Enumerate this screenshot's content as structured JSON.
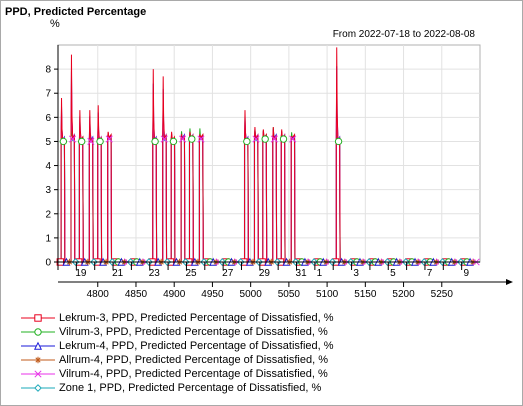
{
  "chart_data": {
    "type": "line",
    "title": "PPD, Predicted Percentage",
    "ylabel": "%",
    "date_range_label": "From 2022-07-18 to 2022-08-08",
    "xlim": [
      4748,
      5300
    ],
    "ylim": [
      0,
      9
    ],
    "yticks": [
      0,
      1,
      2,
      3,
      4,
      5,
      6,
      7,
      8
    ],
    "xticks": [
      4800,
      4850,
      4900,
      4950,
      5000,
      5050,
      5100,
      5150,
      5200,
      5250
    ],
    "day_labels": [
      {
        "day": "19",
        "hour": 4772
      },
      {
        "day": "21",
        "hour": 4820
      },
      {
        "day": "23",
        "hour": 4868
      },
      {
        "day": "25",
        "hour": 4916
      },
      {
        "day": "27",
        "hour": 4964
      },
      {
        "day": "29",
        "hour": 5012
      },
      {
        "day": "31",
        "hour": 5060
      },
      {
        "day": "1",
        "hour": 5084
      },
      {
        "day": "3",
        "hour": 5132
      },
      {
        "day": "5",
        "hour": 5180
      },
      {
        "day": "7",
        "hour": 5228
      },
      {
        "day": "9",
        "hour": 5276
      }
    ],
    "day_boundaries": [
      4748,
      4772,
      4796,
      4820,
      4844,
      4868,
      4892,
      4916,
      4940,
      4964,
      4988,
      5012,
      5036,
      5060,
      5084,
      5108,
      5132,
      5156,
      5180,
      5204,
      5228,
      5252,
      5276
    ],
    "grid": true,
    "occupied_periods": [
      {
        "start": 4752,
        "end": 4757,
        "base": 5.0,
        "peak": 6.8
      },
      {
        "start": 4765,
        "end": 4770,
        "base": 5.1,
        "peak": 8.6
      },
      {
        "start": 4776,
        "end": 4781,
        "base": 5.0,
        "peak": 6.3
      },
      {
        "start": 4789,
        "end": 4794,
        "base": 5.0,
        "peak": 6.3
      },
      {
        "start": 4800,
        "end": 4805,
        "base": 5.0,
        "peak": 6.5
      },
      {
        "start": 4813,
        "end": 4818,
        "base": 5.1,
        "peak": 5.4
      },
      {
        "start": 4872,
        "end": 4877,
        "base": 5.0,
        "peak": 8.0
      },
      {
        "start": 4885,
        "end": 4890,
        "base": 5.1,
        "peak": 7.7
      },
      {
        "start": 4896,
        "end": 4901,
        "base": 5.0,
        "peak": 5.4
      },
      {
        "start": 4909,
        "end": 4914,
        "base": 5.1,
        "peak": 5.3
      },
      {
        "start": 4920,
        "end": 4925,
        "base": 5.1,
        "peak": 5.4
      },
      {
        "start": 4933,
        "end": 4938,
        "base": 5.1,
        "peak": 5.3
      },
      {
        "start": 4992,
        "end": 4997,
        "base": 5.0,
        "peak": 6.3
      },
      {
        "start": 5005,
        "end": 5010,
        "base": 5.1,
        "peak": 5.6
      },
      {
        "start": 5016,
        "end": 5021,
        "base": 5.1,
        "peak": 5.5
      },
      {
        "start": 5029,
        "end": 5034,
        "base": 5.1,
        "peak": 5.6
      },
      {
        "start": 5040,
        "end": 5045,
        "base": 5.1,
        "peak": 5.5
      },
      {
        "start": 5053,
        "end": 5058,
        "base": 5.1,
        "peak": 5.2
      },
      {
        "start": 5112,
        "end": 5117,
        "base": 5.0,
        "peak": 8.9
      }
    ],
    "series": [
      {
        "name": "Lekrum-3, PPD, Predicted Percentage of Dissatisfied, %",
        "color": "#e8001e",
        "marker": "square"
      },
      {
        "name": "Vilrum-3, PPD, Predicted Percentage of Dissatisfied, %",
        "color": "#22b022",
        "marker": "circle"
      },
      {
        "name": "Lekrum-4, PPD, Predicted Percentage of Dissatisfied, %",
        "color": "#1a1ad8",
        "marker": "triangle"
      },
      {
        "name": "Allrum-4, PPD, Predicted Percentage of Dissatisfied, %",
        "color": "#c05a1a",
        "marker": "star"
      },
      {
        "name": "Vilrum-4, PPD, Predicted Percentage of Dissatisfied, %",
        "color": "#e832e8",
        "marker": "cross"
      },
      {
        "name": "Zone 1, PPD, Predicted Percentage of Dissatisfied, %",
        "color": "#1aa8b8",
        "marker": "diamond"
      }
    ]
  }
}
